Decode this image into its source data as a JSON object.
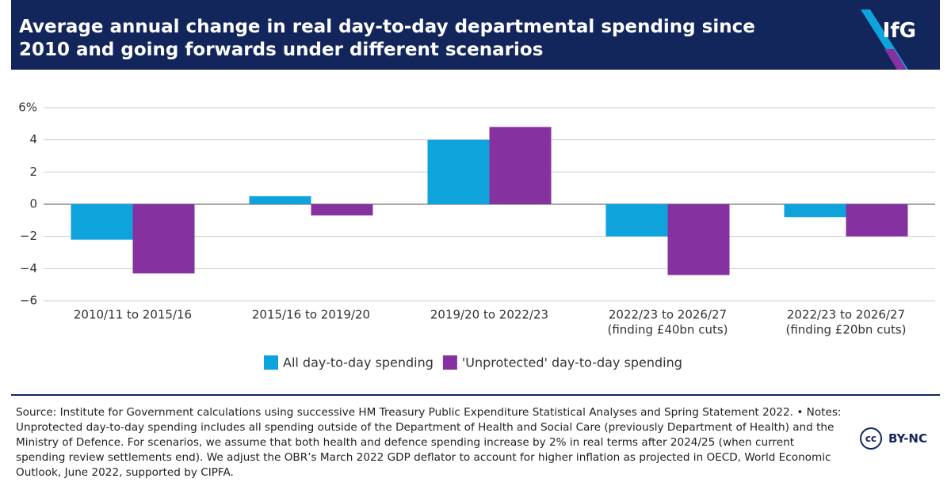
{
  "chart_data": {
    "type": "bar",
    "title": "Average annual change in real day-to-day departmental spending since 2010 and going forwards under different scenarios",
    "logo": "IfG",
    "categories": [
      [
        "2010/11 to 2015/16"
      ],
      [
        "2015/16 to 2019/20"
      ],
      [
        "2019/20 to 2022/23"
      ],
      [
        "2022/23 to 2026/27",
        "(finding £40bn cuts)"
      ],
      [
        "2022/23 to 2026/27",
        "(finding £20bn cuts)"
      ]
    ],
    "series": [
      {
        "name": "All day-to-day spending",
        "color": "#0fa3db",
        "values": [
          -2.2,
          0.5,
          4.0,
          -2.0,
          -0.8
        ]
      },
      {
        "name": "'Unprotected' day-to-day spending",
        "color": "#8531a0",
        "values": [
          -4.3,
          -0.7,
          4.8,
          -4.4,
          -2.0
        ]
      }
    ],
    "ylim": [
      -6,
      6
    ],
    "yticks": [
      {
        "value": 6,
        "label": "6%"
      },
      4,
      2,
      0,
      {
        "value": -2,
        "label": "−2"
      },
      {
        "value": -4,
        "label": "−4"
      },
      {
        "value": -6,
        "label": "−6"
      }
    ],
    "grid": true,
    "legend": "bottom",
    "source": "Source: Institute for Government calculations using successive HM Treasury Public Expenditure Statistical Analyses and Spring Statement 2022. • Notes: Unprotected day-to-day spending includes all spending outside of the Department of Health and Social Care (previously Department of Health) and the Ministry of Defence. For scenarios, we assume that both health and defence spending increase by 2% in real terms after 2024/25 (when current spending review settlements end). We adjust the OBR’s March 2022 GDP deflator to account for higher inflation as projected in OECD, World Economic Outlook, June 2022, supported by CIPFA.",
    "license": "BY-NC"
  }
}
